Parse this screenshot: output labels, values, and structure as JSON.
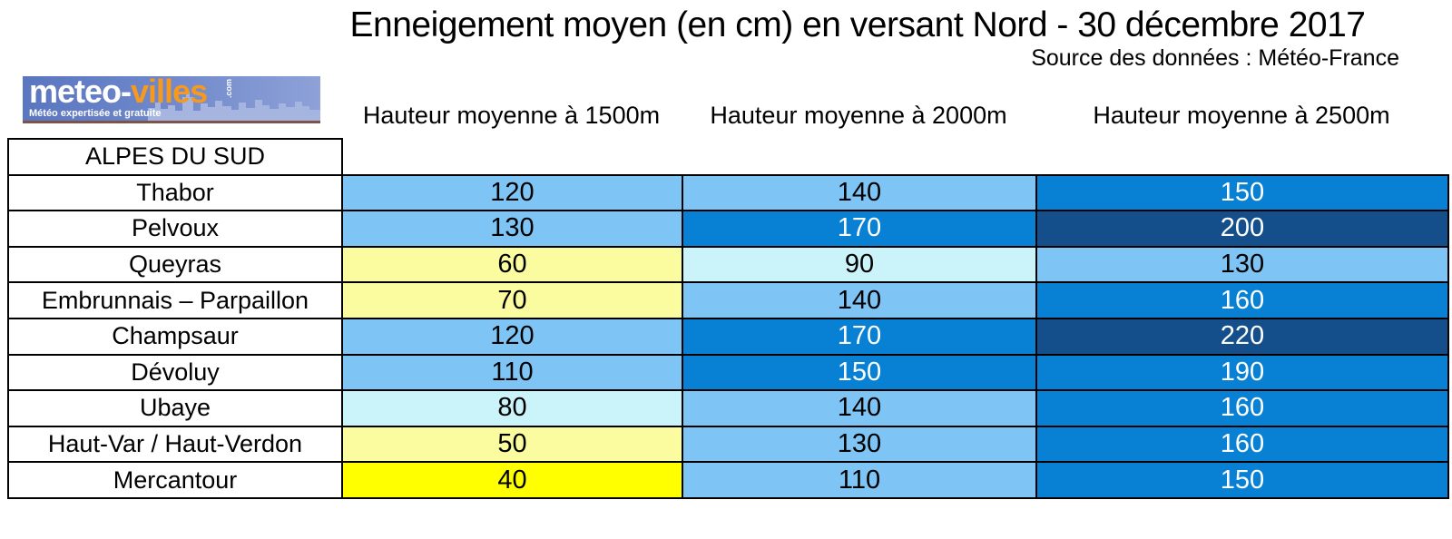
{
  "header": {
    "title": "Enneigement moyen (en cm) en versant Nord - 30 décembre 2017",
    "source": "Source des données : Météo-France"
  },
  "logo": {
    "brand_white": "meteo-",
    "brand_orange": "villes",
    "brand_suffix": ".com",
    "tagline": "Météo expertisée et gratuite"
  },
  "columns": [
    "Hauteur moyenne à 1500m",
    "Hauteur moyenne à 2000m",
    "Hauteur moyenne à 2500m"
  ],
  "table": {
    "region_header": "ALPES DU SUD",
    "rows": [
      {
        "name": "Thabor",
        "values": [
          120,
          140,
          150
        ],
        "colors": [
          "lightblue",
          "lightblue",
          "medblue"
        ]
      },
      {
        "name": "Pelvoux",
        "values": [
          130,
          170,
          200
        ],
        "colors": [
          "lightblue",
          "medblue",
          "navy"
        ]
      },
      {
        "name": "Queyras",
        "values": [
          60,
          90,
          130
        ],
        "colors": [
          "paleyellow",
          "palecyan",
          "lightblue"
        ]
      },
      {
        "name": "Embrunnais – Parpaillon",
        "values": [
          70,
          140,
          160
        ],
        "colors": [
          "paleyellow",
          "lightblue",
          "medblue"
        ]
      },
      {
        "name": "Champsaur",
        "values": [
          120,
          170,
          220
        ],
        "colors": [
          "lightblue",
          "medblue",
          "navy"
        ]
      },
      {
        "name": "Dévoluy",
        "values": [
          110,
          150,
          190
        ],
        "colors": [
          "lightblue",
          "medblue",
          "medblue"
        ]
      },
      {
        "name": "Ubaye",
        "values": [
          80,
          140,
          160
        ],
        "colors": [
          "palecyan",
          "lightblue",
          "medblue"
        ]
      },
      {
        "name": "Haut-Var / Haut-Verdon",
        "values": [
          50,
          130,
          160
        ],
        "colors": [
          "paleyellow",
          "lightblue",
          "medblue"
        ]
      },
      {
        "name": "Mercantour",
        "values": [
          40,
          110,
          150
        ],
        "colors": [
          "brightyellow",
          "lightblue",
          "medblue"
        ]
      }
    ]
  },
  "palette": {
    "lightblue": "#7EC4F4",
    "medblue": "#0881D5",
    "navy": "#144F8C",
    "palecyan": "#CBF4FA",
    "paleyellow": "#FBFBA0",
    "brightyellow": "#FFFF00",
    "black_text": "#000000",
    "white_text": "#FFFFFF"
  },
  "chart_data": {
    "type": "table",
    "title": "Enneigement moyen (en cm) en versant Nord - 30 décembre 2017",
    "source": "Source des données : Météo-France",
    "group": "ALPES DU SUD",
    "units": "cm",
    "categories": [
      "Thabor",
      "Pelvoux",
      "Queyras",
      "Embrunnais – Parpaillon",
      "Champsaur",
      "Dévoluy",
      "Ubaye",
      "Haut-Var / Haut-Verdon",
      "Mercantour"
    ],
    "series": [
      {
        "name": "Hauteur moyenne à 1500m",
        "values": [
          120,
          130,
          60,
          70,
          120,
          110,
          80,
          50,
          40
        ]
      },
      {
        "name": "Hauteur moyenne à 2000m",
        "values": [
          140,
          170,
          90,
          140,
          170,
          150,
          140,
          130,
          110
        ]
      },
      {
        "name": "Hauteur moyenne à 2500m",
        "values": [
          150,
          200,
          130,
          160,
          220,
          190,
          160,
          160,
          150
        ]
      }
    ]
  }
}
